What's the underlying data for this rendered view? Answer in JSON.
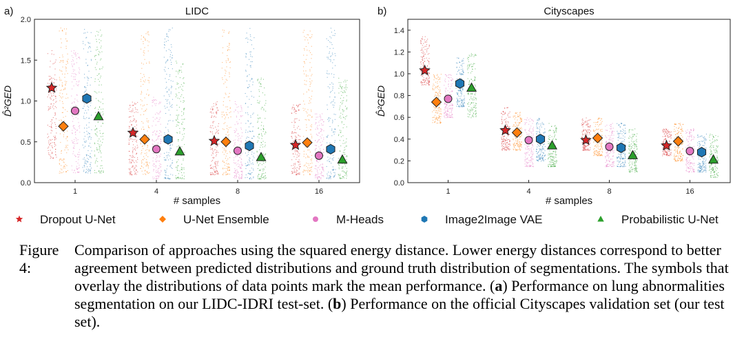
{
  "chart_data": [
    {
      "type": "scatter",
      "panel_label": "a)",
      "title": "LIDC",
      "xlabel": "# samples",
      "ylabel": "D̂²GED",
      "categories": [
        "1",
        "4",
        "8",
        "16"
      ],
      "ylim": [
        0,
        2.0
      ],
      "yticks": [
        "0.0",
        "0.5",
        "1.0",
        "1.5",
        "2.0"
      ],
      "series": [
        {
          "name": "Dropout U-Net",
          "color": "#d62728",
          "marker": "star",
          "means": [
            1.16,
            0.61,
            0.51,
            0.46
          ],
          "spread": [
            [
              0.3,
              1.63
            ],
            [
              0.1,
              1.0
            ],
            [
              0.1,
              1.0
            ],
            [
              0.1,
              1.0
            ]
          ]
        },
        {
          "name": "U-Net Ensemble",
          "color": "#ff7f0e",
          "marker": "diamond",
          "means": [
            0.69,
            0.53,
            0.5,
            0.49
          ],
          "spread": [
            [
              0.12,
              1.9
            ],
            [
              0.1,
              1.9
            ],
            [
              0.1,
              1.9
            ],
            [
              0.1,
              1.9
            ]
          ]
        },
        {
          "name": "M-Heads",
          "color": "#e377c2",
          "marker": "circle",
          "means": [
            0.88,
            0.41,
            0.39,
            0.33
          ],
          "spread": [
            [
              0.12,
              1.63
            ],
            [
              0.05,
              1.05
            ],
            [
              0.05,
              1.0
            ],
            [
              0.05,
              0.85
            ]
          ]
        },
        {
          "name": "Image2Image VAE",
          "color": "#1f77b4",
          "marker": "hexagon",
          "means": [
            1.03,
            0.53,
            0.45,
            0.41
          ],
          "spread": [
            [
              0.12,
              1.9
            ],
            [
              0.05,
              1.9
            ],
            [
              0.05,
              1.9
            ],
            [
              0.05,
              1.9
            ]
          ]
        },
        {
          "name": "Probabilistic U-Net",
          "color": "#2ca02c",
          "marker": "triangle",
          "means": [
            0.81,
            0.38,
            0.31,
            0.28
          ],
          "spread": [
            [
              0.12,
              1.9
            ],
            [
              0.05,
              1.5
            ],
            [
              0.05,
              1.3
            ],
            [
              0.05,
              1.3
            ]
          ]
        }
      ]
    },
    {
      "type": "scatter",
      "panel_label": "b)",
      "title": "Cityscapes",
      "xlabel": "# samples",
      "ylabel": "D̂²GED",
      "categories": [
        "1",
        "4",
        "8",
        "16"
      ],
      "ylim": [
        0,
        1.5
      ],
      "yticks": [
        "0.0",
        "0.2",
        "0.4",
        "0.6",
        "0.8",
        "1.0",
        "1.2",
        "1.4"
      ],
      "series": [
        {
          "name": "Dropout U-Net",
          "color": "#d62728",
          "marker": "star",
          "means": [
            1.03,
            0.48,
            0.39,
            0.34
          ],
          "spread": [
            [
              0.9,
              1.35
            ],
            [
              0.3,
              0.7
            ],
            [
              0.3,
              0.6
            ],
            [
              0.25,
              0.5
            ]
          ]
        },
        {
          "name": "U-Net Ensemble",
          "color": "#ff7f0e",
          "marker": "diamond",
          "means": [
            0.74,
            0.46,
            0.41,
            0.38
          ],
          "spread": [
            [
              0.55,
              1.0
            ],
            [
              0.3,
              0.65
            ],
            [
              0.25,
              0.6
            ],
            [
              0.2,
              0.55
            ]
          ]
        },
        {
          "name": "M-Heads",
          "color": "#e377c2",
          "marker": "circle",
          "means": [
            0.77,
            0.39,
            0.33,
            0.29
          ],
          "spread": [
            [
              0.6,
              1.0
            ],
            [
              0.15,
              0.6
            ],
            [
              0.15,
              0.55
            ],
            [
              0.1,
              0.5
            ]
          ]
        },
        {
          "name": "Image2Image VAE",
          "color": "#1f77b4",
          "marker": "hexagon",
          "means": [
            0.91,
            0.4,
            0.32,
            0.28
          ],
          "spread": [
            [
              0.7,
              1.15
            ],
            [
              0.2,
              0.6
            ],
            [
              0.15,
              0.55
            ],
            [
              0.1,
              0.45
            ]
          ]
        },
        {
          "name": "Probabilistic U-Net",
          "color": "#2ca02c",
          "marker": "triangle",
          "means": [
            0.87,
            0.34,
            0.25,
            0.21
          ],
          "spread": [
            [
              0.6,
              1.2
            ],
            [
              0.15,
              0.55
            ],
            [
              0.1,
              0.5
            ],
            [
              0.05,
              0.45
            ]
          ]
        }
      ]
    }
  ],
  "caption": {
    "label": "Figure 4:",
    "parts": [
      {
        "t": "Comparison of approaches using the squared energy distance. Lower energy distances correspond to better agreement between predicted distributions and ground truth distribution of segmentations. The symbols that overlay the distributions of data points mark the mean performance. (",
        "b": false
      },
      {
        "t": "a",
        "b": true
      },
      {
        "t": ") Performance on lung abnormalities segmentation on our LIDC-IDRI test-set. (",
        "b": false
      },
      {
        "t": "b",
        "b": true
      },
      {
        "t": ") Performance on the official Cityscapes validation set (our test set).",
        "b": false
      }
    ]
  }
}
